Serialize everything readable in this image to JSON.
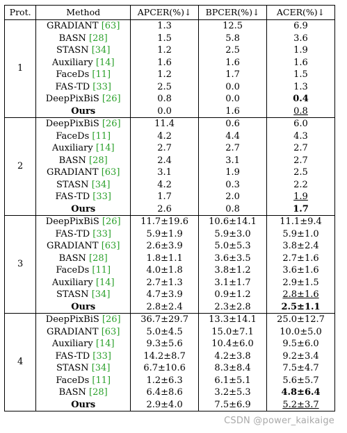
{
  "header": {
    "prot": "Prot.",
    "method": "Method",
    "apcer": "APCER(%)↓",
    "bpcer": "BPCER(%)↓",
    "acer": "ACER(%)↓"
  },
  "groups": [
    {
      "prot": "1",
      "rows": [
        {
          "name": "GRADIANT",
          "cite": "[63]",
          "apcer": "1.3",
          "bpcer": "12.5",
          "acer": "6.9"
        },
        {
          "name": "BASN",
          "cite": "[28]",
          "apcer": "1.5",
          "bpcer": "5.8",
          "acer": "3.6"
        },
        {
          "name": "STASN",
          "cite": "[34]",
          "apcer": "1.2",
          "bpcer": "2.5",
          "acer": "1.9"
        },
        {
          "name": "Auxiliary",
          "cite": "[14]",
          "apcer": "1.6",
          "bpcer": "1.6",
          "acer": "1.6"
        },
        {
          "name": "FaceDs",
          "cite": "[11]",
          "apcer": "1.2",
          "bpcer": "1.7",
          "acer": "1.5"
        },
        {
          "name": "FAS-TD",
          "cite": "[33]",
          "apcer": "2.5",
          "bpcer": "0.0",
          "acer": "1.3"
        },
        {
          "name": "DeepPixBiS",
          "cite": "[26]",
          "apcer": "0.8",
          "bpcer": "0.0",
          "acer": "0.4",
          "acer_style": "bold"
        },
        {
          "name": "Ours",
          "cite": "",
          "name_style": "bold",
          "apcer": "0.0",
          "bpcer": "1.6",
          "acer": "0.8",
          "acer_style": "uline"
        }
      ]
    },
    {
      "prot": "2",
      "rows": [
        {
          "name": "DeepPixBiS",
          "cite": "[26]",
          "apcer": "11.4",
          "bpcer": "0.6",
          "acer": "6.0"
        },
        {
          "name": "FaceDs",
          "cite": "[11]",
          "apcer": "4.2",
          "bpcer": "4.4",
          "acer": "4.3"
        },
        {
          "name": "Auxiliary",
          "cite": "[14]",
          "apcer": "2.7",
          "bpcer": "2.7",
          "acer": "2.7"
        },
        {
          "name": "BASN",
          "cite": "[28]",
          "apcer": "2.4",
          "bpcer": "3.1",
          "acer": "2.7"
        },
        {
          "name": "GRADIANT",
          "cite": "[63]",
          "apcer": "3.1",
          "bpcer": "1.9",
          "acer": "2.5"
        },
        {
          "name": "STASN",
          "cite": "[34]",
          "apcer": "4.2",
          "bpcer": "0.3",
          "acer": "2.2"
        },
        {
          "name": "FAS-TD",
          "cite": "[33]",
          "apcer": "1.7",
          "bpcer": "2.0",
          "acer": "1.9",
          "acer_style": "uline"
        },
        {
          "name": "Ours",
          "cite": "",
          "name_style": "bold",
          "apcer": "2.6",
          "bpcer": "0.8",
          "acer": "1.7",
          "acer_style": "bold"
        }
      ]
    },
    {
      "prot": "3",
      "rows": [
        {
          "name": "DeepPixBiS",
          "cite": "[26]",
          "apcer": "11.7±19.6",
          "bpcer": "10.6±14.1",
          "acer": "11.1±9.4"
        },
        {
          "name": "FAS-TD",
          "cite": "[33]",
          "apcer": "5.9±1.9",
          "bpcer": "5.9±3.0",
          "acer": "5.9±1.0"
        },
        {
          "name": "GRADIANT",
          "cite": "[63]",
          "apcer": "2.6±3.9",
          "bpcer": "5.0±5.3",
          "acer": "3.8±2.4"
        },
        {
          "name": "BASN",
          "cite": "[28]",
          "apcer": "1.8±1.1",
          "bpcer": "3.6±3.5",
          "acer": "2.7±1.6"
        },
        {
          "name": "FaceDs",
          "cite": "[11]",
          "apcer": "4.0±1.8",
          "bpcer": "3.8±1.2",
          "acer": "3.6±1.6"
        },
        {
          "name": "Auxiliary",
          "cite": "[14]",
          "apcer": "2.7±1.3",
          "bpcer": "3.1±1.7",
          "acer": "2.9±1.5"
        },
        {
          "name": "STASN",
          "cite": "[34]",
          "apcer": "4.7±3.9",
          "bpcer": "0.9±1.2",
          "acer": "2.8±1.6",
          "acer_style": "uline"
        },
        {
          "name": "Ours",
          "cite": "",
          "name_style": "bold",
          "apcer": "2.8±2.4",
          "bpcer": "2.3±2.8",
          "acer": "2.5±1.1",
          "acer_style": "bold"
        }
      ]
    },
    {
      "prot": "4",
      "rows": [
        {
          "name": "DeepPixBiS",
          "cite": "[26]",
          "apcer": "36.7±29.7",
          "bpcer": "13.3±14.1",
          "acer": "25.0±12.7"
        },
        {
          "name": "GRADIANT",
          "cite": "[63]",
          "apcer": "5.0±4.5",
          "bpcer": "15.0±7.1",
          "acer": "10.0±5.0"
        },
        {
          "name": "Auxiliary",
          "cite": "[14]",
          "apcer": "9.3±5.6",
          "bpcer": "10.4±6.0",
          "acer": "9.5±6.0"
        },
        {
          "name": "FAS-TD",
          "cite": "[33]",
          "apcer": "14.2±8.7",
          "bpcer": "4.2±3.8",
          "acer": "9.2±3.4"
        },
        {
          "name": "STASN",
          "cite": "[34]",
          "apcer": "6.7±10.6",
          "bpcer": "8.3±8.4",
          "acer": "7.5±4.7"
        },
        {
          "name": "FaceDs",
          "cite": "[11]",
          "apcer": "1.2±6.3",
          "bpcer": "6.1±5.1",
          "acer": "5.6±5.7"
        },
        {
          "name": "BASN",
          "cite": "[28]",
          "apcer": "6.4±8.6",
          "bpcer": "3.2±5.3",
          "acer": "4.8±6.4",
          "acer_style": "bold"
        },
        {
          "name": "Ours",
          "cite": "",
          "name_style": "bold",
          "apcer": "2.9±4.0",
          "bpcer": "7.5±6.9",
          "acer": "5.2±3.7",
          "acer_style": "uline"
        }
      ]
    }
  ],
  "watermark": "CSDN @power_kaikaige"
}
